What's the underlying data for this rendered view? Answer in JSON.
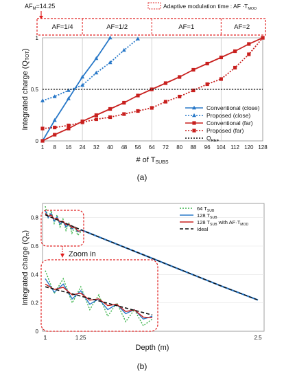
{
  "colors": {
    "blue": "#2878c8",
    "red": "#c8201e",
    "green": "#3cb44b",
    "black": "#111111",
    "grid": "#c8c8c8",
    "dashed_box": "#e02020"
  },
  "panel_a": {
    "caption": "(a)",
    "chart_data": {
      "type": "line",
      "xlabel": "# of T",
      "xlabel_sub": "SUBS",
      "ylabel": "Integrated charge (Q",
      "ylabel_sub": "TOT",
      "ylabel_end": ")",
      "xlim": [
        1,
        128
      ],
      "ylim": [
        0,
        1
      ],
      "x_ticks": [
        "1",
        "8",
        "16",
        "24",
        "32",
        "40",
        "48",
        "56",
        "64",
        "72",
        "80",
        "88",
        "96",
        "104",
        "112",
        "120",
        "128"
      ],
      "y_ticks": [
        "0",
        "0.5",
        "1"
      ],
      "af_max_label": "AF",
      "af_max_sub": "M",
      "af_max_value": "=14.25",
      "legend_box_title": "Adaptive modulation time : AF ·T",
      "legend_box_sub": "MOD",
      "regions": [
        {
          "label": "AF=1/4",
          "x_start": 1,
          "x_end": 24
        },
        {
          "label": "AF=1/2",
          "x_start": 24,
          "x_end": 64
        },
        {
          "label": "AF=1",
          "x_start": 64,
          "x_end": 104
        },
        {
          "label": "AF=2",
          "x_start": 104,
          "x_end": 128
        }
      ],
      "series": [
        {
          "name": "Conventional (close)",
          "style": "solid",
          "marker": "triangle",
          "color": "blue",
          "x": [
            1,
            8,
            16,
            24,
            32,
            40
          ],
          "y": [
            0.0,
            0.2,
            0.41,
            0.62,
            0.8,
            1.0
          ]
        },
        {
          "name": "Proposed (close)",
          "style": "dotted",
          "marker": "triangle",
          "color": "blue",
          "x": [
            1,
            8,
            16,
            24,
            32,
            40,
            48,
            56
          ],
          "y": [
            0.39,
            0.43,
            0.49,
            0.54,
            0.66,
            0.76,
            0.88,
            0.99
          ]
        },
        {
          "name": "Conventional (far)",
          "style": "solid",
          "marker": "square",
          "color": "red",
          "x": [
            1,
            8,
            16,
            24,
            32,
            40,
            48,
            56,
            64,
            72,
            80,
            88,
            96,
            104,
            112,
            120,
            128
          ],
          "y": [
            0.0,
            0.06,
            0.12,
            0.19,
            0.25,
            0.31,
            0.37,
            0.44,
            0.5,
            0.56,
            0.62,
            0.69,
            0.75,
            0.81,
            0.87,
            0.94,
            1.0
          ]
        },
        {
          "name": "Proposed (far)",
          "style": "dotted",
          "marker": "square",
          "color": "red",
          "x": [
            1,
            8,
            16,
            24,
            32,
            40,
            48,
            56,
            64,
            72,
            80,
            88,
            96,
            104,
            112,
            120,
            128
          ],
          "y": [
            0.12,
            0.13,
            0.15,
            0.18,
            0.21,
            0.23,
            0.26,
            0.29,
            0.32,
            0.38,
            0.43,
            0.49,
            0.55,
            0.6,
            0.71,
            0.84,
            1.0
          ]
        },
        {
          "name": "Q",
          "name_sub": "REF",
          "style": "dotted",
          "marker": "none",
          "color": "black",
          "x": [
            1,
            128
          ],
          "y": [
            0.5,
            0.5
          ]
        }
      ]
    }
  },
  "panel_b": {
    "caption": "(b)",
    "chart_data": {
      "type": "line",
      "xlabel": "Depth (m)",
      "ylabel": "Integrated charge (Q",
      "ylabel_sub": "π",
      "ylabel_end": ")",
      "xlim": [
        1,
        2.5
      ],
      "ylim": [
        0,
        0.9
      ],
      "x_ticks": [
        {
          "v": 1,
          "t": "1"
        },
        {
          "v": 2.5,
          "t": "2.5"
        }
      ],
      "y_ticks": [
        "0",
        "0.2",
        "0.4",
        "0.6",
        "0.8"
      ],
      "zoom_label": "Zoom in",
      "zoom_x_ticks": [
        "1",
        "1.25"
      ],
      "series": [
        {
          "name": "64 T",
          "name_sub": "SUB",
          "style": "dotted",
          "color": "green",
          "x": [
            1.0,
            1.021,
            1.042,
            1.063,
            1.083,
            1.104,
            1.125,
            1.146,
            1.167,
            1.188,
            1.208,
            1.229,
            1.25
          ],
          "y": [
            0.88,
            0.795,
            0.85,
            0.76,
            0.82,
            0.735,
            0.79,
            0.71,
            0.76,
            0.69,
            0.735,
            0.675,
            0.7
          ]
        },
        {
          "name": "128 T",
          "name_sub": "SUB",
          "style": "solid",
          "color": "blue",
          "x": [
            1.0,
            1.021,
            1.042,
            1.063,
            1.083,
            1.104,
            1.125,
            1.146,
            1.167,
            1.188,
            1.208,
            1.229,
            1.25
          ],
          "y": [
            0.85,
            0.8,
            0.83,
            0.775,
            0.805,
            0.755,
            0.775,
            0.735,
            0.755,
            0.72,
            0.735,
            0.7,
            0.71
          ]
        },
        {
          "name": "128 T",
          "name_sub": "SUB",
          "name_end": " with AF·T",
          "name_end_sub": "MOD",
          "style": "solid",
          "color": "red",
          "x": [
            1.0,
            1.021,
            1.042,
            1.063,
            1.083,
            1.104,
            1.125,
            1.146,
            1.167,
            1.188,
            1.208,
            1.229,
            1.25
          ],
          "y": [
            0.83,
            0.81,
            0.818,
            0.79,
            0.796,
            0.77,
            0.775,
            0.75,
            0.755,
            0.728,
            0.734,
            0.707,
            0.705
          ]
        },
        {
          "name": "Ideal",
          "style": "dashed",
          "color": "black",
          "x": [
            1.0,
            1.25,
            1.5,
            1.75,
            2.0,
            2.25,
            2.5
          ],
          "y": [
            0.82,
            0.715,
            0.615,
            0.515,
            0.415,
            0.315,
            0.22
          ]
        }
      ],
      "tail": {
        "x": [
          1.25,
          1.5,
          1.75,
          2.0,
          2.25,
          2.5
        ],
        "y": [
          0.715,
          0.615,
          0.515,
          0.415,
          0.315,
          0.22
        ]
      }
    }
  }
}
